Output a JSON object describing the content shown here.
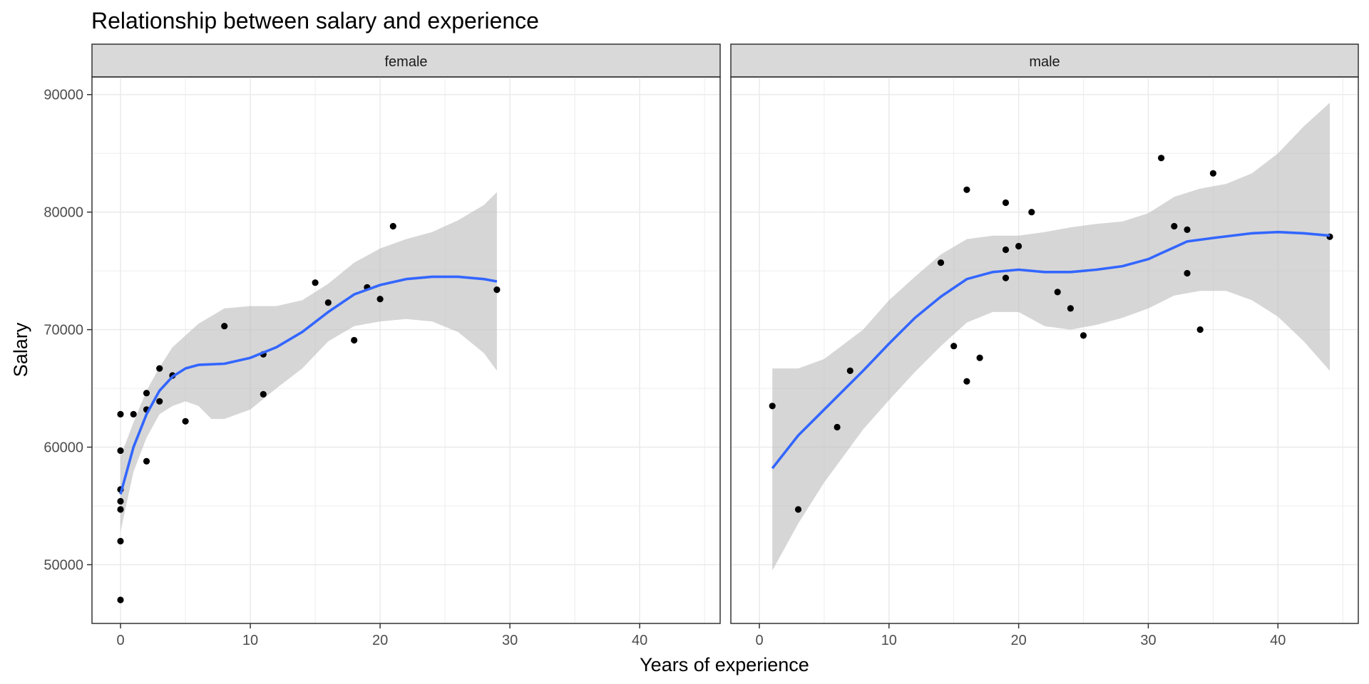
{
  "chart_data": {
    "type": "scatter",
    "title": "Relationship between salary and experience",
    "xlabel": "Years of experience",
    "ylabel": "Salary",
    "xlim": [
      -2.2,
      46.2
    ],
    "ylim": [
      45000,
      91500
    ],
    "x_ticks": [
      "0",
      "10",
      "20",
      "30",
      "40"
    ],
    "y_ticks": [
      "50000",
      "60000",
      "70000",
      "80000",
      "90000"
    ],
    "grid": true,
    "colors": {
      "points": "#000000",
      "smooth": "#3366ff",
      "ribbon": "#bdbdbd",
      "strip_fill": "#d9d9d9",
      "grid": "#ebebeb",
      "panel_border": "#333333"
    },
    "panels": [
      {
        "label": "female",
        "points": [
          [
            0,
            62800
          ],
          [
            0,
            59700
          ],
          [
            0,
            56400
          ],
          [
            0,
            55400
          ],
          [
            0,
            54700
          ],
          [
            0,
            52000
          ],
          [
            0,
            47000
          ],
          [
            1,
            62800
          ],
          [
            2,
            64600
          ],
          [
            2,
            63200
          ],
          [
            2,
            58800
          ],
          [
            3,
            66700
          ],
          [
            3,
            63900
          ],
          [
            4,
            66100
          ],
          [
            5,
            62200
          ],
          [
            8,
            70300
          ],
          [
            11,
            67900
          ],
          [
            11,
            64500
          ],
          [
            15,
            74000
          ],
          [
            16,
            72300
          ],
          [
            18,
            69100
          ],
          [
            19,
            73600
          ],
          [
            20,
            72600
          ],
          [
            21,
            78800
          ],
          [
            29,
            73400
          ]
        ],
        "smooth": [
          [
            0,
            56000
          ],
          [
            1,
            60000
          ],
          [
            2,
            62800
          ],
          [
            3,
            64800
          ],
          [
            4,
            66000
          ],
          [
            5,
            66700
          ],
          [
            6,
            67000
          ],
          [
            8,
            67100
          ],
          [
            10,
            67600
          ],
          [
            12,
            68500
          ],
          [
            14,
            69800
          ],
          [
            16,
            71500
          ],
          [
            18,
            73000
          ],
          [
            20,
            73800
          ],
          [
            22,
            74300
          ],
          [
            24,
            74500
          ],
          [
            26,
            74500
          ],
          [
            28,
            74300
          ],
          [
            29,
            74100
          ]
        ],
        "ribbon_upper": [
          [
            0,
            59200
          ],
          [
            1,
            62100
          ],
          [
            2,
            64800
          ],
          [
            3,
            66800
          ],
          [
            4,
            68500
          ],
          [
            5,
            69500
          ],
          [
            6,
            70500
          ],
          [
            8,
            71800
          ],
          [
            10,
            72000
          ],
          [
            12,
            72000
          ],
          [
            14,
            72500
          ],
          [
            16,
            73900
          ],
          [
            18,
            75700
          ],
          [
            20,
            76900
          ],
          [
            22,
            77700
          ],
          [
            24,
            78300
          ],
          [
            26,
            79300
          ],
          [
            28,
            80600
          ],
          [
            29,
            81700
          ]
        ],
        "ribbon_lower": [
          [
            0,
            52800
          ],
          [
            1,
            57900
          ],
          [
            2,
            60800
          ],
          [
            3,
            62800
          ],
          [
            4,
            63500
          ],
          [
            5,
            63900
          ],
          [
            6,
            63500
          ],
          [
            7,
            62400
          ],
          [
            8,
            62400
          ],
          [
            10,
            63200
          ],
          [
            12,
            65000
          ],
          [
            14,
            66700
          ],
          [
            16,
            69000
          ],
          [
            18,
            70300
          ],
          [
            20,
            70700
          ],
          [
            22,
            70900
          ],
          [
            24,
            70700
          ],
          [
            26,
            69800
          ],
          [
            28,
            68000
          ],
          [
            29,
            66500
          ]
        ]
      },
      {
        "label": "male",
        "points": [
          [
            1,
            63500
          ],
          [
            3,
            54700
          ],
          [
            6,
            61700
          ],
          [
            7,
            66500
          ],
          [
            14,
            75700
          ],
          [
            15,
            68600
          ],
          [
            16,
            81900
          ],
          [
            16,
            65600
          ],
          [
            17,
            67600
          ],
          [
            19,
            80800
          ],
          [
            19,
            76800
          ],
          [
            19,
            74400
          ],
          [
            20,
            77100
          ],
          [
            21,
            80000
          ],
          [
            23,
            73200
          ],
          [
            24,
            71800
          ],
          [
            25,
            69500
          ],
          [
            31,
            84600
          ],
          [
            32,
            78800
          ],
          [
            33,
            78500
          ],
          [
            33,
            74800
          ],
          [
            34,
            70000
          ],
          [
            35,
            83300
          ],
          [
            44,
            77900
          ]
        ],
        "smooth": [
          [
            1,
            58200
          ],
          [
            3,
            61000
          ],
          [
            5,
            63200
          ],
          [
            8,
            66500
          ],
          [
            10,
            68800
          ],
          [
            12,
            71000
          ],
          [
            14,
            72800
          ],
          [
            16,
            74300
          ],
          [
            18,
            74900
          ],
          [
            20,
            75100
          ],
          [
            22,
            74900
          ],
          [
            24,
            74900
          ],
          [
            26,
            75100
          ],
          [
            28,
            75400
          ],
          [
            30,
            76000
          ],
          [
            31,
            76500
          ],
          [
            32,
            77000
          ],
          [
            33,
            77500
          ],
          [
            35,
            77800
          ],
          [
            38,
            78200
          ],
          [
            40,
            78300
          ],
          [
            42,
            78200
          ],
          [
            44,
            78000
          ]
        ],
        "ribbon_upper": [
          [
            1,
            66700
          ],
          [
            3,
            66700
          ],
          [
            5,
            67500
          ],
          [
            8,
            70000
          ],
          [
            10,
            72500
          ],
          [
            12,
            74500
          ],
          [
            14,
            76400
          ],
          [
            16,
            77700
          ],
          [
            18,
            78000
          ],
          [
            20,
            78000
          ],
          [
            22,
            78300
          ],
          [
            24,
            78700
          ],
          [
            26,
            79000
          ],
          [
            28,
            79200
          ],
          [
            30,
            79900
          ],
          [
            32,
            81300
          ],
          [
            34,
            82000
          ],
          [
            36,
            82400
          ],
          [
            38,
            83300
          ],
          [
            40,
            85000
          ],
          [
            42,
            87300
          ],
          [
            44,
            89300
          ]
        ],
        "ribbon_lower": [
          [
            1,
            49500
          ],
          [
            3,
            53500
          ],
          [
            5,
            57000
          ],
          [
            8,
            61500
          ],
          [
            10,
            64000
          ],
          [
            12,
            66400
          ],
          [
            14,
            68600
          ],
          [
            16,
            70600
          ],
          [
            18,
            71500
          ],
          [
            20,
            71500
          ],
          [
            22,
            70300
          ],
          [
            24,
            70000
          ],
          [
            26,
            70400
          ],
          [
            28,
            71000
          ],
          [
            30,
            71800
          ],
          [
            32,
            72900
          ],
          [
            34,
            73300
          ],
          [
            36,
            73300
          ],
          [
            38,
            72500
          ],
          [
            40,
            71100
          ],
          [
            42,
            69000
          ],
          [
            44,
            66500
          ]
        ]
      }
    ]
  }
}
